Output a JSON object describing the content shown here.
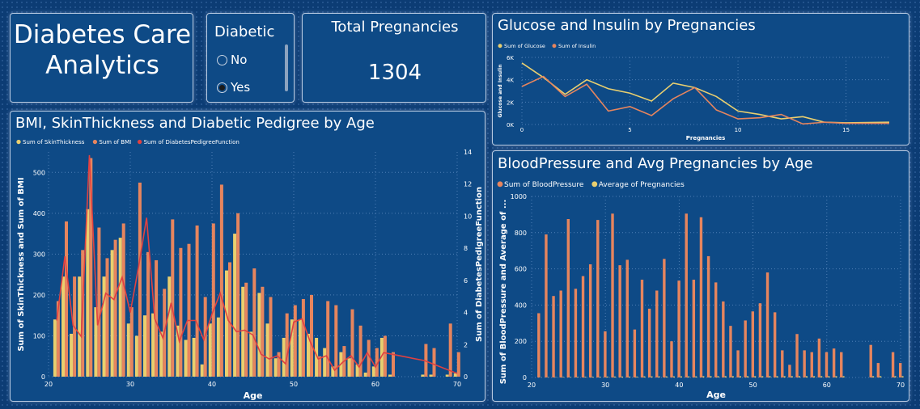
{
  "title_card": {
    "line1": "Diabetes Care",
    "line2": "Analytics"
  },
  "slicer": {
    "title": "Diabetic",
    "options": [
      {
        "label": "No",
        "selected": false
      },
      {
        "label": "Yes",
        "selected": true
      }
    ]
  },
  "kpi": {
    "title": "Total Pregnancies",
    "value": "1304"
  },
  "colors": {
    "background": "#0c3c74",
    "card": "#0e4a86",
    "yellow": "#e9cf6f",
    "orange": "#e6855e",
    "red": "#e04141",
    "text": "#ffffff"
  },
  "chart_data": [
    {
      "id": "bmi",
      "type": "bar",
      "title": "BMI, SkinThickness and Diabetic Pedigree by Age",
      "xlabel": "Age",
      "ylabel": "Sum of SkinThickness and Sum of BMI",
      "y2label": "Sum of DiabetesPedigreeFunction",
      "xlim": [
        20,
        70
      ],
      "ylim": [
        0,
        550
      ],
      "y2lim": [
        0,
        14
      ],
      "xticks": [
        20,
        30,
        40,
        50,
        60,
        70
      ],
      "yticks": [
        0,
        100,
        200,
        300,
        400,
        500
      ],
      "y2ticks": [
        0,
        2,
        4,
        6,
        8,
        10,
        12,
        14
      ],
      "legend": [
        "Sum of SkinThickness",
        "Sum of BMI",
        "Sum of DiabetesPedigreeFunction"
      ],
      "legend_position": "top-left",
      "categories": [
        21,
        22,
        23,
        24,
        25,
        26,
        27,
        28,
        29,
        30,
        31,
        32,
        33,
        34,
        35,
        36,
        37,
        38,
        39,
        40,
        41,
        42,
        43,
        44,
        45,
        46,
        47,
        48,
        49,
        50,
        51,
        52,
        53,
        54,
        55,
        56,
        57,
        58,
        59,
        60,
        61,
        62,
        66,
        67,
        69,
        70
      ],
      "series": [
        {
          "name": "Sum of SkinThickness",
          "values": [
            140,
            245,
            105,
            245,
            410,
            170,
            245,
            310,
            340,
            130,
            100,
            150,
            155,
            110,
            245,
            125,
            90,
            95,
            30,
            130,
            145,
            260,
            350,
            220,
            110,
            205,
            130,
            45,
            95,
            140,
            140,
            105,
            95,
            70,
            25,
            60,
            45,
            30,
            10,
            25,
            95,
            5,
            5,
            5,
            5,
            8
          ]
        },
        {
          "name": "Sum of BMI",
          "values": [
            185,
            380,
            245,
            310,
            535,
            365,
            290,
            335,
            375,
            170,
            475,
            305,
            285,
            215,
            385,
            315,
            325,
            370,
            195,
            375,
            470,
            280,
            400,
            230,
            265,
            220,
            195,
            60,
            155,
            175,
            190,
            200,
            50,
            185,
            175,
            75,
            165,
            125,
            90,
            70,
            100,
            60,
            80,
            70,
            130,
            60
          ]
        },
        {
          "name": "Sum of DiabetesPedigreeFunction",
          "values": [
            3.5,
            7.5,
            3.2,
            2.5,
            13.8,
            3.2,
            5.2,
            4.8,
            6.2,
            4.0,
            6.8,
            9.9,
            3.6,
            2.4,
            4.6,
            2.2,
            3.5,
            3.5,
            2.3,
            3.9,
            5.2,
            3.5,
            2.8,
            2.9,
            2.6,
            1.4,
            1.1,
            1.3,
            0.8,
            3.4,
            3.6,
            2.2,
            1.1,
            1.3,
            0.4,
            0.9,
            1.3,
            0.6,
            1.5,
            0.6,
            1.5,
            1.4,
            1.0,
            0.8,
            0.4,
            0.2
          ]
        }
      ]
    },
    {
      "id": "glucose",
      "type": "line",
      "title": "Glucose and Insulin by Pregnancies",
      "xlabel": "Pregnancies",
      "ylabel": "Glucose and Insulin",
      "xlim": [
        0,
        17
      ],
      "ylim": [
        0,
        6000
      ],
      "xticks": [
        0,
        5,
        10,
        15
      ],
      "yticks": [
        0,
        2000,
        4000,
        6000
      ],
      "ytick_labels": [
        "0K",
        "2K",
        "4K",
        "6K"
      ],
      "legend": [
        "Sum of Glucose",
        "Sum of Insulin"
      ],
      "legend_position": "top-left",
      "x": [
        0,
        1,
        2,
        3,
        4,
        5,
        6,
        7,
        8,
        9,
        10,
        11,
        12,
        13,
        14,
        15,
        17
      ],
      "series": [
        {
          "name": "Sum of Glucose",
          "values": [
            5500,
            4200,
            2700,
            4000,
            3200,
            2800,
            2100,
            3700,
            3300,
            2500,
            1200,
            900,
            500,
            700,
            200,
            150,
            200
          ]
        },
        {
          "name": "Sum of Insulin",
          "values": [
            3400,
            4300,
            2500,
            3600,
            1200,
            1600,
            800,
            2300,
            3300,
            1300,
            500,
            600,
            900,
            50,
            200,
            100,
            100
          ]
        }
      ]
    },
    {
      "id": "bp",
      "type": "bar",
      "title": "BloodPressure and Avg Pregnancies by Age",
      "xlabel": "Age",
      "ylabel": "Sum of BloodPressure and Average of ...",
      "xlim": [
        20,
        70
      ],
      "ylim": [
        0,
        1000
      ],
      "xticks": [
        20,
        30,
        40,
        50,
        60,
        70
      ],
      "yticks": [
        0,
        200,
        400,
        600,
        800,
        1000
      ],
      "legend": [
        "Sum of BloodPressure",
        "Average of Pregnancies"
      ],
      "legend_position": "top-left",
      "categories": [
        21,
        22,
        23,
        24,
        25,
        26,
        27,
        28,
        29,
        30,
        31,
        32,
        33,
        34,
        35,
        36,
        37,
        38,
        39,
        40,
        41,
        42,
        43,
        44,
        45,
        46,
        47,
        48,
        49,
        50,
        51,
        52,
        53,
        54,
        55,
        56,
        57,
        58,
        59,
        60,
        61,
        62,
        66,
        67,
        69,
        70
      ],
      "series": [
        {
          "name": "Sum of BloodPressure",
          "values": [
            355,
            790,
            450,
            480,
            875,
            490,
            560,
            625,
            870,
            255,
            905,
            620,
            650,
            265,
            540,
            380,
            480,
            655,
            200,
            535,
            905,
            540,
            885,
            670,
            525,
            420,
            285,
            150,
            315,
            365,
            410,
            580,
            360,
            150,
            70,
            240,
            150,
            140,
            215,
            140,
            160,
            140,
            180,
            80,
            140,
            80
          ]
        },
        {
          "name": "Average of Pregnancies",
          "values": [
            1,
            2,
            2,
            3,
            3,
            3,
            4,
            4,
            4,
            5,
            5,
            5,
            5,
            5,
            6,
            6,
            6,
            6,
            6,
            6,
            6,
            6,
            7,
            7,
            7,
            7,
            7,
            7,
            7,
            7,
            7,
            7,
            7,
            7,
            7,
            7,
            7,
            7,
            7,
            7,
            7,
            7,
            7,
            7,
            7,
            7
          ]
        }
      ]
    }
  ]
}
